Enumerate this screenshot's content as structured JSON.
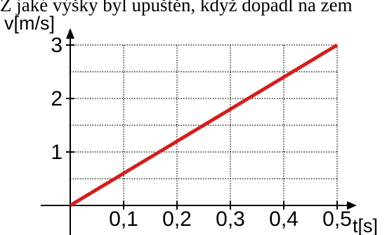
{
  "header_fragment": "Z jaké výšky byl upuštěn, když dopadl na zem",
  "chart_data": {
    "type": "line",
    "title": "",
    "xlabel": "t[s]",
    "ylabel": "v[m/s]",
    "xlim": [
      0,
      0.5
    ],
    "ylim": [
      0,
      3
    ],
    "x_ticks": [
      "0,1",
      "0,2",
      "0,3",
      "0,4",
      "0,5"
    ],
    "y_ticks": [
      "1",
      "2",
      "3"
    ],
    "grid": true,
    "series": [
      {
        "color": "#d0201e",
        "x": [
          0,
          0.5
        ],
        "y": [
          0,
          3
        ]
      }
    ]
  }
}
